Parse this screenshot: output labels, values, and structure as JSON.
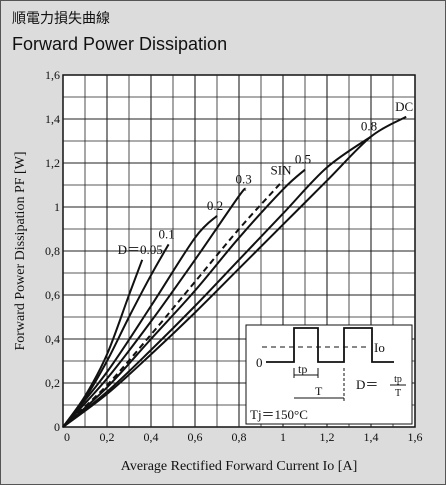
{
  "title_jp": "順電力損失曲線",
  "title_en": "Forward Power Dissipation",
  "chart_data": {
    "type": "line",
    "title": "Forward Power Dissipation",
    "xlabel": "Average Rectified Forward Current  Io [A]",
    "ylabel": "Forward Power Dissipation  PF [W]",
    "xlim": [
      0,
      1.6
    ],
    "ylim": [
      0,
      1.6
    ],
    "x_ticks": [
      "0",
      "0,2",
      "0,4",
      "0,6",
      "0,8",
      "1",
      "1,2",
      "1,4",
      "1,6"
    ],
    "y_ticks": [
      "0",
      "0,2",
      "0,4",
      "0,6",
      "0,8",
      "1",
      "1,2",
      "1,4",
      "1,6"
    ],
    "grid": true,
    "series": [
      {
        "name": "D＝0.05",
        "dashed": false,
        "points": [
          [
            0,
            0
          ],
          [
            0.1,
            0.14
          ],
          [
            0.2,
            0.33
          ],
          [
            0.3,
            0.6
          ],
          [
            0.36,
            0.76
          ]
        ]
      },
      {
        "name": "0.1",
        "dashed": false,
        "points": [
          [
            0,
            0
          ],
          [
            0.1,
            0.13
          ],
          [
            0.2,
            0.3
          ],
          [
            0.3,
            0.5
          ],
          [
            0.4,
            0.69
          ],
          [
            0.48,
            0.83
          ]
        ]
      },
      {
        "name": "0.2",
        "dashed": false,
        "points": [
          [
            0,
            0
          ],
          [
            0.2,
            0.25
          ],
          [
            0.4,
            0.55
          ],
          [
            0.6,
            0.86
          ],
          [
            0.7,
            0.96
          ]
        ]
      },
      {
        "name": "0.3",
        "dashed": false,
        "points": [
          [
            0,
            0
          ],
          [
            0.2,
            0.22
          ],
          [
            0.4,
            0.48
          ],
          [
            0.6,
            0.76
          ],
          [
            0.8,
            1.05
          ],
          [
            0.83,
            1.08
          ]
        ]
      },
      {
        "name": "SIN",
        "dashed": true,
        "points": [
          [
            0,
            0
          ],
          [
            0.2,
            0.19
          ],
          [
            0.4,
            0.42
          ],
          [
            0.6,
            0.66
          ],
          [
            0.8,
            0.9
          ],
          [
            1.0,
            1.12
          ]
        ]
      },
      {
        "name": "0.5",
        "dashed": false,
        "points": [
          [
            0,
            0
          ],
          [
            0.2,
            0.18
          ],
          [
            0.4,
            0.4
          ],
          [
            0.6,
            0.62
          ],
          [
            0.8,
            0.86
          ],
          [
            1.0,
            1.08
          ],
          [
            1.1,
            1.17
          ]
        ]
      },
      {
        "name": "0.8",
        "dashed": false,
        "points": [
          [
            0,
            0
          ],
          [
            0.2,
            0.16
          ],
          [
            0.4,
            0.35
          ],
          [
            0.6,
            0.55
          ],
          [
            0.8,
            0.76
          ],
          [
            1.0,
            0.97
          ],
          [
            1.2,
            1.18
          ],
          [
            1.4,
            1.32
          ]
        ]
      },
      {
        "name": "DC",
        "dashed": false,
        "points": [
          [
            0,
            0
          ],
          [
            0.2,
            0.15
          ],
          [
            0.4,
            0.33
          ],
          [
            0.6,
            0.52
          ],
          [
            0.8,
            0.72
          ],
          [
            1.0,
            0.92
          ],
          [
            1.2,
            1.12
          ],
          [
            1.4,
            1.32
          ],
          [
            1.56,
            1.41
          ]
        ]
      }
    ],
    "inset": {
      "level_io": "Io",
      "level_zero": "0",
      "tp": "tp",
      "period": "T",
      "duty_lhs": "D＝",
      "duty_num": "tp",
      "duty_den": "T",
      "tj": "Tj＝150°C"
    }
  }
}
